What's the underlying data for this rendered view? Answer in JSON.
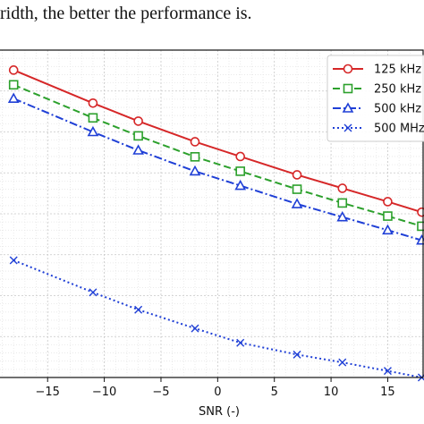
{
  "caption": "ridth, the better the performance is.",
  "chart_data": {
    "type": "line",
    "title": "",
    "xlabel": "SNR (-)",
    "ylabel": "",
    "x": [
      -18,
      -11,
      -7,
      -2,
      2,
      7,
      11,
      15,
      18
    ],
    "xlim": [
      -19.2,
      18.2
    ],
    "ylim": [
      0,
      1
    ],
    "xticks": [
      -15,
      -10,
      -5,
      0,
      5,
      10,
      15
    ],
    "xtick_labels": [
      "−15",
      "−10",
      "−5",
      "0",
      "5",
      "10",
      "15"
    ],
    "grid": true,
    "legend_position": "top-right",
    "series": [
      {
        "name": "125 kHz",
        "color": "#d62728",
        "line": "solid",
        "marker": "circle",
        "values": [
          0.939,
          0.838,
          0.783,
          0.72,
          0.675,
          0.619,
          0.578,
          0.537,
          0.505
        ]
      },
      {
        "name": "250 kHz",
        "color": "#2ca02c",
        "line": "dashed",
        "marker": "square",
        "values": [
          0.894,
          0.793,
          0.738,
          0.674,
          0.63,
          0.575,
          0.533,
          0.493,
          0.462
        ]
      },
      {
        "name": "500 kHz",
        "color": "#1f3fd6",
        "line": "dashdot",
        "marker": "triangle",
        "values": [
          0.852,
          0.75,
          0.694,
          0.63,
          0.586,
          0.53,
          0.49,
          0.45,
          0.419
        ]
      },
      {
        "name": "500 MHz",
        "color": "#1f3fd6",
        "line": "dotted",
        "marker": "x",
        "values": [
          0.358,
          0.26,
          0.207,
          0.15,
          0.106,
          0.07,
          0.046,
          0.02,
          0.0
        ]
      }
    ]
  }
}
